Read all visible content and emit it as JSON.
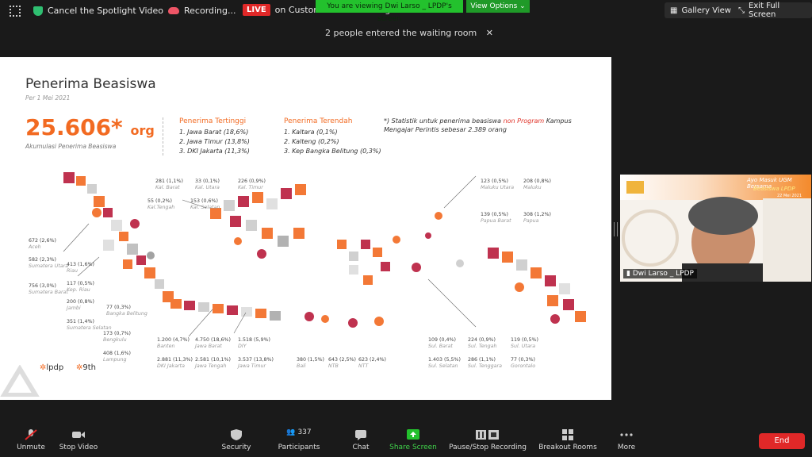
{
  "topbar": {
    "cancel_spotlight": "Cancel the Spotlight Video",
    "recording": "Recording...",
    "live_badge": "LIVE",
    "live_text": "on Custom Live Streaming Service",
    "viewing_banner": "You are viewing Dwi Larso _ LPDP's screen",
    "view_options": "View Options",
    "gallery_view": "Gallery View",
    "exit_fullscreen": "Exit Full Screen"
  },
  "notification": {
    "waiting_room": "2 people entered the waiting room"
  },
  "slide": {
    "title": "Penerima Beasiswa",
    "subtitle": "Per 1 Mei 2021",
    "total": "25.606*",
    "total_unit": "org",
    "total_caption": "Akumulasi Penerima Beasiswa",
    "top_heading": "Penerima Tertinggi",
    "top_list": [
      "1. Jawa Barat (18,6%)",
      "2. Jawa Timur (13,8%)",
      "3. DKI Jakarta (11,3%)"
    ],
    "low_heading": "Penerima Terendah",
    "low_list": [
      "1. Kaltara (0,1%)",
      "2. Kalteng (0,2%)",
      "3. Kep Bangka Belitung (0,3%)"
    ],
    "note_prefix": "*) Statistik untuk penerima beasiswa ",
    "note_highlight": "non Program",
    "note_suffix": " Kampus Mengajar Perintis sebesar 2.389 orang",
    "logo_lpdp": "lpdp",
    "logo_9th": "9th",
    "stats": [
      {
        "value": "672 (2,6%)",
        "region": "Aceh"
      },
      {
        "value": "582 (2,3%)",
        "region": "Sumatera Utara"
      },
      {
        "value": "756 (3,0%)",
        "region": "Sumatera Barat"
      },
      {
        "value": "413 (1,6%)",
        "region": "Riau"
      },
      {
        "value": "117 (0,5%)",
        "region": "Kep. Riau"
      },
      {
        "value": "200 (0,8%)",
        "region": "Jambi"
      },
      {
        "value": "351 (1,4%)",
        "region": "Sumatera Selatan"
      },
      {
        "value": "77 (0,3%)",
        "region": "Bangka Belitung"
      },
      {
        "value": "173 (0,7%)",
        "region": "Bengkulu"
      },
      {
        "value": "408 (1,6%)",
        "region": "Lampung"
      },
      {
        "value": "281 (1,1%)",
        "region": "Kal. Barat"
      },
      {
        "value": "55 (0,2%)",
        "region": "Kal.Tengah"
      },
      {
        "value": "33 (0,1%)",
        "region": "Kal. Utara"
      },
      {
        "value": "153 (0,6%)",
        "region": "Kal. Selatan"
      },
      {
        "value": "226 (0,9%)",
        "region": "Kal. Timur"
      },
      {
        "value": "1.200 (4,7%)",
        "region": "Banten"
      },
      {
        "value": "2.881 (11,3%)",
        "region": "DKI Jakarta"
      },
      {
        "value": "4.750 (18,6%)",
        "region": "Jawa Barat"
      },
      {
        "value": "2.581 (10,1%)",
        "region": "Jawa Tengah"
      },
      {
        "value": "1.518 (5,9%)",
        "region": "DIY"
      },
      {
        "value": "3.537 (13,8%)",
        "region": "Jawa Timur"
      },
      {
        "value": "380 (1,5%)",
        "region": "Bali"
      },
      {
        "value": "643 (2,5%)",
        "region": "NTB"
      },
      {
        "value": "623 (2,4%)",
        "region": "NTT"
      },
      {
        "value": "109 (0,4%)",
        "region": "Sul. Barat"
      },
      {
        "value": "1.403 (5,5%)",
        "region": "Sul. Selatan"
      },
      {
        "value": "224 (0,9%)",
        "region": "Sul. Tengah"
      },
      {
        "value": "286 (1,1%)",
        "region": "Sul. Tenggara"
      },
      {
        "value": "119 (0,5%)",
        "region": "Sul. Utara"
      },
      {
        "value": "77 (0,3%)",
        "region": "Gorontalo"
      },
      {
        "value": "123 (0,5%)",
        "region": "Maluku Utara"
      },
      {
        "value": "208 (0,8%)",
        "region": "Maluku"
      },
      {
        "value": "139 (0,5%)",
        "region": "Papua Barat"
      },
      {
        "value": "308 (1,2%)",
        "region": "Papua"
      }
    ]
  },
  "webcam": {
    "name": "Dwi Larso _ LPDP",
    "banner_line1": "Ayo Masuk UGM Bersama",
    "banner_line2": "Beasiswa LPDP",
    "banner_date": "22 Mei 2021"
  },
  "toolbar": {
    "unmute": "Unmute",
    "stop_video": "Stop Video",
    "security": "Security",
    "participants": "Participants",
    "participants_count": "337",
    "chat": "Chat",
    "share_screen": "Share Screen",
    "pause_recording": "Pause/Stop Recording",
    "breakout_rooms": "Breakout Rooms",
    "more": "More",
    "end": "End"
  },
  "colors": {
    "accent": "#f26a21",
    "live": "#e02828",
    "share": "#23c12d",
    "end": "#e02828"
  }
}
